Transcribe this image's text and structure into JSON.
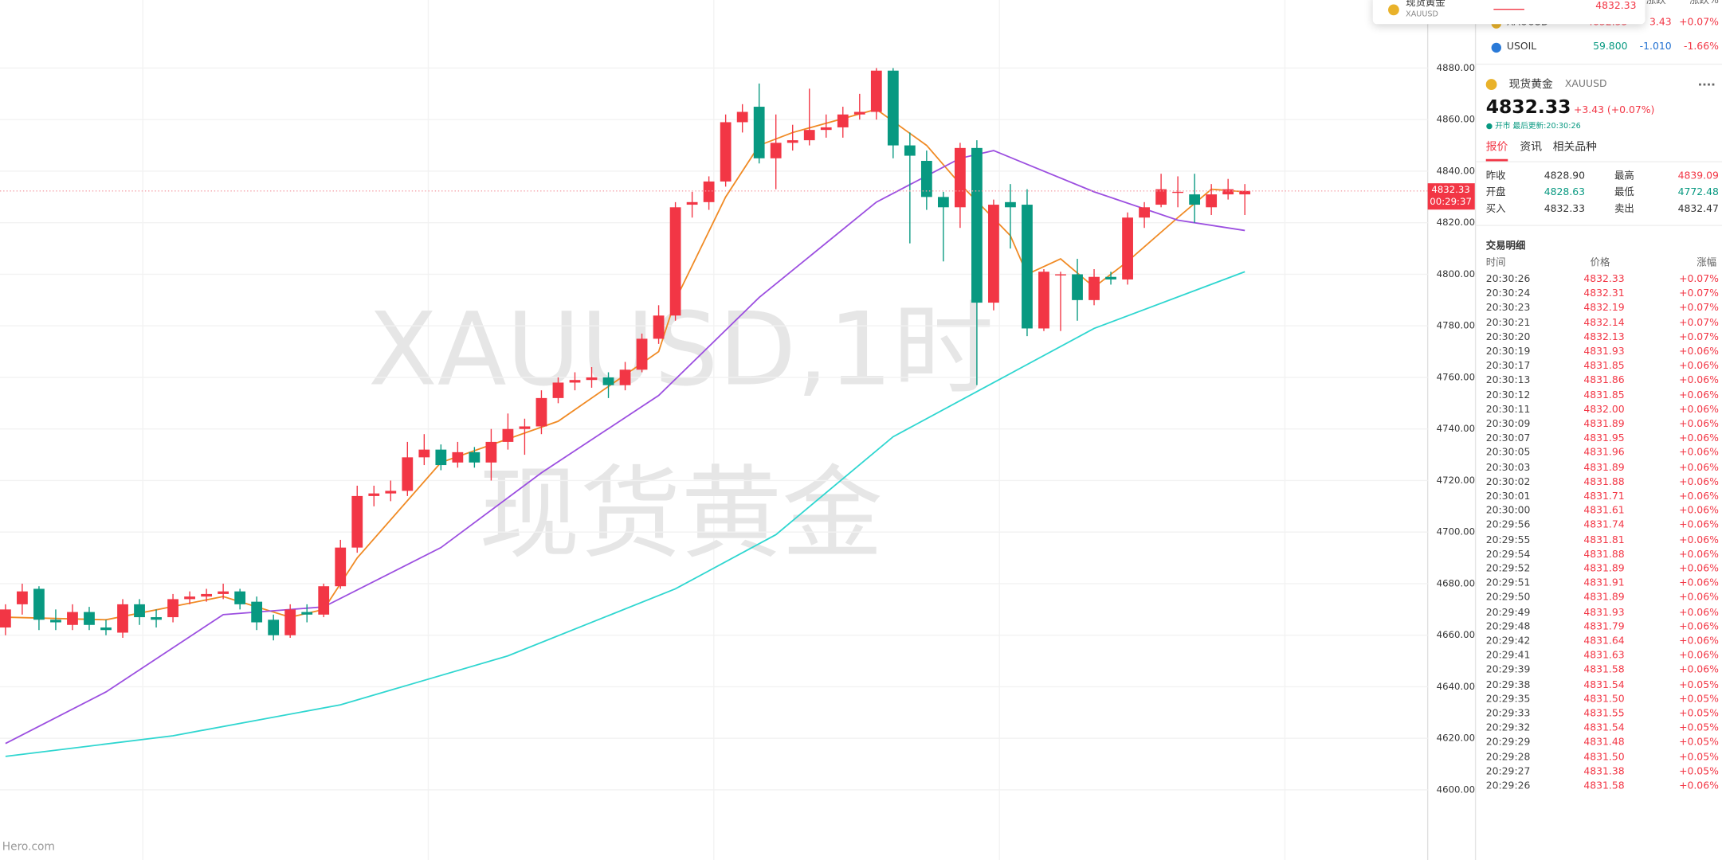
{
  "chart_data": {
    "type": "candlestick",
    "watermark": [
      "XAUUSD,1时",
      "现货黄金"
    ],
    "up_color": "#f23645",
    "down_color": "#089981",
    "candles": [
      [
        4663,
        4672,
        4660,
        4670
      ],
      [
        4672,
        4680,
        4668,
        4677
      ],
      [
        4678,
        4679,
        4662,
        4666
      ],
      [
        4666,
        4670,
        4662,
        4665
      ],
      [
        4664,
        4672,
        4662,
        4669
      ],
      [
        4669,
        4671,
        4662,
        4664
      ],
      [
        4663,
        4666,
        4660,
        4662
      ],
      [
        4661,
        4674,
        4659,
        4672
      ],
      [
        4672,
        4674,
        4664,
        4667
      ],
      [
        4667,
        4670,
        4663,
        4666
      ],
      [
        4667,
        4676,
        4665,
        4674
      ],
      [
        4674,
        4677,
        4672,
        4675
      ],
      [
        4675,
        4678,
        4673,
        4676
      ],
      [
        4676,
        4680,
        4674,
        4677
      ],
      [
        4677,
        4678,
        4670,
        4672
      ],
      [
        4673,
        4675,
        4662,
        4665
      ],
      [
        4666,
        4668,
        4658,
        4660
      ],
      [
        4660,
        4672,
        4659,
        4670
      ],
      [
        4669,
        4672,
        4665,
        4668
      ],
      [
        4668,
        4680,
        4667,
        4679
      ],
      [
        4679,
        4697,
        4678,
        4694
      ],
      [
        4694,
        4718,
        4692,
        4714
      ],
      [
        4714,
        4718,
        4710,
        4715
      ],
      [
        4715,
        4720,
        4712,
        4716
      ],
      [
        4716,
        4735,
        4714,
        4729
      ],
      [
        4729,
        4738,
        4726,
        4732
      ],
      [
        4732,
        4734,
        4724,
        4726
      ],
      [
        4727,
        4735,
        4725,
        4731
      ],
      [
        4731,
        4733,
        4725,
        4727
      ],
      [
        4727,
        4740,
        4720,
        4735
      ],
      [
        4735,
        4746,
        4732,
        4740
      ],
      [
        4740,
        4744,
        4730,
        4741
      ],
      [
        4741,
        4755,
        4738,
        4752
      ],
      [
        4752,
        4760,
        4750,
        4758
      ],
      [
        4758,
        4762,
        4755,
        4759
      ],
      [
        4759,
        4764,
        4756,
        4760
      ],
      [
        4760,
        4762,
        4752,
        4757
      ],
      [
        4757,
        4766,
        4755,
        4763
      ],
      [
        4763,
        4777,
        4762,
        4775
      ],
      [
        4775,
        4788,
        4773,
        4784
      ],
      [
        4784,
        4828,
        4782,
        4826
      ],
      [
        4827,
        4832,
        4822,
        4828
      ],
      [
        4828,
        4838,
        4825,
        4836
      ],
      [
        4836,
        4862,
        4834,
        4859
      ],
      [
        4859,
        4866,
        4855,
        4863
      ],
      [
        4865,
        4874,
        4843,
        4845
      ],
      [
        4845,
        4862,
        4833,
        4851
      ],
      [
        4851,
        4858,
        4848,
        4852
      ],
      [
        4852,
        4872,
        4850,
        4856
      ],
      [
        4856,
        4862,
        4853,
        4857
      ],
      [
        4857,
        4865,
        4853,
        4862
      ],
      [
        4862,
        4870,
        4860,
        4863
      ],
      [
        4863,
        4880,
        4860,
        4879
      ],
      [
        4879,
        4880,
        4845,
        4850
      ],
      [
        4850,
        4855,
        4812,
        4846
      ],
      [
        4844,
        4848,
        4825,
        4830
      ],
      [
        4830,
        4832,
        4805,
        4826
      ],
      [
        4826,
        4851,
        4818,
        4849
      ],
      [
        4849,
        4852,
        4757,
        4789
      ],
      [
        4789,
        4829,
        4786,
        4827
      ],
      [
        4828,
        4835,
        4810,
        4826
      ],
      [
        4827,
        4833,
        4776,
        4779
      ],
      [
        4779,
        4802,
        4778,
        4801
      ],
      [
        4800,
        4801,
        4778,
        4800
      ],
      [
        4800,
        4806,
        4782,
        4790
      ],
      [
        4790,
        4802,
        4788,
        4799
      ],
      [
        4799,
        4801,
        4796,
        4798
      ],
      [
        4798,
        4824,
        4796,
        4822
      ],
      [
        4822,
        4828,
        4818,
        4826
      ],
      [
        4827,
        4839,
        4826,
        4833
      ],
      [
        4832,
        4838,
        4826,
        4832
      ],
      [
        4831,
        4839,
        4820,
        4827
      ],
      [
        4826,
        4835,
        4823,
        4831
      ],
      [
        4831,
        4837,
        4829,
        4833
      ],
      [
        4831,
        4835,
        4823,
        4832.33
      ]
    ],
    "ma": [
      {
        "color": "#f08a24",
        "x": [
          0,
          6,
          13,
          17,
          19,
          21,
          26,
          33,
          39,
          40,
          43,
          45,
          47,
          52,
          55,
          57,
          60,
          61,
          63,
          65,
          67,
          70,
          72,
          74
        ],
        "values": [
          4667,
          4666,
          4675,
          4667,
          4670,
          4690,
          4727,
          4743,
          4770,
          4790,
          4830,
          4850,
          4855,
          4864,
          4850,
          4835,
          4815,
          4800,
          4806,
          4795,
          4805,
          4822,
          4833,
          4832
        ]
      },
      {
        "color": "#9c4fe0",
        "x": [
          0,
          6,
          13,
          15,
          19,
          26,
          32,
          39,
          45,
          52,
          57,
          59,
          65,
          70,
          74
        ],
        "values": [
          4618,
          4638,
          4668,
          4669,
          4671,
          4694,
          4723,
          4753,
          4791,
          4828,
          4845,
          4848,
          4832,
          4821,
          4817
        ]
      },
      {
        "color": "#2fd6d0",
        "x": [
          0,
          10,
          20,
          30,
          40,
          46,
          53,
          59,
          65,
          74
        ],
        "values": [
          4613,
          4621,
          4633,
          4652,
          4678,
          4699,
          4737,
          4758,
          4779,
          4801
        ]
      }
    ],
    "ylim": [
      4572.8,
      4906.4
    ],
    "yticks": [
      {
        "value": 4600,
        "label": "4600.00"
      },
      {
        "value": 4620,
        "label": "4620.00"
      },
      {
        "value": 4640,
        "label": "4640.00"
      },
      {
        "value": 4660,
        "label": "4660.00"
      },
      {
        "value": 4680,
        "label": "4680.00"
      },
      {
        "value": 4700,
        "label": "4700.00"
      },
      {
        "value": 4720,
        "label": "4720.00"
      },
      {
        "value": 4740,
        "label": "4740.00"
      },
      {
        "value": 4760,
        "label": "4760.00"
      },
      {
        "value": 4780,
        "label": "4780.00"
      },
      {
        "value": 4800,
        "label": "4800.00"
      },
      {
        "value": 4820,
        "label": "4820.00"
      },
      {
        "value": 4840,
        "label": "4840.00"
      },
      {
        "value": 4860,
        "label": "4860.00"
      },
      {
        "value": 4880,
        "label": "4880.00"
      }
    ],
    "grid": true,
    "price_tag": {
      "price": "4832.33",
      "countdown": "00:29:37"
    }
  },
  "brand": "Hero.com",
  "panel": {
    "popup": {
      "name": "现货黄金",
      "code": "XAUUSD",
      "price": "4832.33"
    },
    "watch_header": [
      "涨跌",
      "涨跌%"
    ],
    "watch": [
      [
        "XAUUSD",
        "4832.33",
        "3.43",
        "+0.07%"
      ],
      [
        "USOIL",
        "59.800",
        "-1.010",
        "-1.66%"
      ]
    ],
    "quote": {
      "name": "现货黄金",
      "code": "XAUUSD",
      "price": "4832.33",
      "change": "+3.43 (+0.07%)",
      "status": "● 开市 最后更新:20:30:26"
    },
    "tabs": [
      "报价",
      "资讯",
      "相关品种"
    ],
    "stats": [
      [
        "昨收",
        "4828.90",
        "最高",
        "4839.09"
      ],
      [
        "开盘",
        "4828.63",
        "最低",
        "4772.48"
      ],
      [
        "买入",
        "4832.33",
        "卖出",
        "4832.47"
      ]
    ],
    "trades": {
      "title": "交易明细",
      "columns": [
        "时间",
        "价格",
        "涨幅"
      ],
      "rows": [
        [
          "20:30:26",
          "4832.33",
          "+0.07%"
        ],
        [
          "20:30:24",
          "4832.31",
          "+0.07%"
        ],
        [
          "20:30:23",
          "4832.19",
          "+0.07%"
        ],
        [
          "20:30:21",
          "4832.14",
          "+0.07%"
        ],
        [
          "20:30:20",
          "4832.13",
          "+0.07%"
        ],
        [
          "20:30:19",
          "4831.93",
          "+0.06%"
        ],
        [
          "20:30:17",
          "4831.85",
          "+0.06%"
        ],
        [
          "20:30:13",
          "4831.86",
          "+0.06%"
        ],
        [
          "20:30:12",
          "4831.85",
          "+0.06%"
        ],
        [
          "20:30:11",
          "4832.00",
          "+0.06%"
        ],
        [
          "20:30:09",
          "4831.89",
          "+0.06%"
        ],
        [
          "20:30:07",
          "4831.95",
          "+0.06%"
        ],
        [
          "20:30:05",
          "4831.96",
          "+0.06%"
        ],
        [
          "20:30:03",
          "4831.89",
          "+0.06%"
        ],
        [
          "20:30:02",
          "4831.88",
          "+0.06%"
        ],
        [
          "20:30:01",
          "4831.71",
          "+0.06%"
        ],
        [
          "20:30:00",
          "4831.61",
          "+0.06%"
        ],
        [
          "20:29:56",
          "4831.74",
          "+0.06%"
        ],
        [
          "20:29:55",
          "4831.81",
          "+0.06%"
        ],
        [
          "20:29:54",
          "4831.88",
          "+0.06%"
        ],
        [
          "20:29:52",
          "4831.89",
          "+0.06%"
        ],
        [
          "20:29:51",
          "4831.91",
          "+0.06%"
        ],
        [
          "20:29:50",
          "4831.89",
          "+0.06%"
        ],
        [
          "20:29:49",
          "4831.93",
          "+0.06%"
        ],
        [
          "20:29:48",
          "4831.79",
          "+0.06%"
        ],
        [
          "20:29:42",
          "4831.64",
          "+0.06%"
        ],
        [
          "20:29:41",
          "4831.63",
          "+0.06%"
        ],
        [
          "20:29:39",
          "4831.58",
          "+0.06%"
        ],
        [
          "20:29:38",
          "4831.54",
          "+0.05%"
        ],
        [
          "20:29:35",
          "4831.50",
          "+0.05%"
        ],
        [
          "20:29:33",
          "4831.55",
          "+0.05%"
        ],
        [
          "20:29:32",
          "4831.54",
          "+0.05%"
        ],
        [
          "20:29:29",
          "4831.48",
          "+0.05%"
        ],
        [
          "20:29:28",
          "4831.50",
          "+0.05%"
        ],
        [
          "20:29:27",
          "4831.38",
          "+0.05%"
        ],
        [
          "20:29:26",
          "4831.58",
          "+0.06%"
        ]
      ]
    }
  }
}
